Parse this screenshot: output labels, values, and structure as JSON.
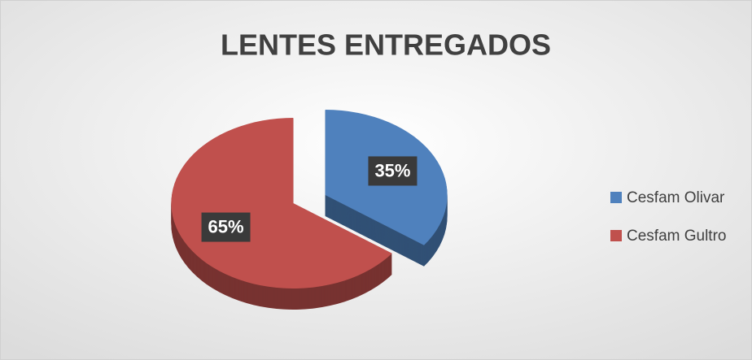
{
  "chart_data": {
    "type": "pie",
    "title": "LENTES ENTREGADOS",
    "categories": [
      "Cesfam Olivar",
      "Cesfam Gultro"
    ],
    "values": [
      35,
      65
    ],
    "value_labels": [
      "35%",
      "65%"
    ],
    "colors": [
      "#4f81bd",
      "#c0504d"
    ],
    "legend": "right"
  }
}
